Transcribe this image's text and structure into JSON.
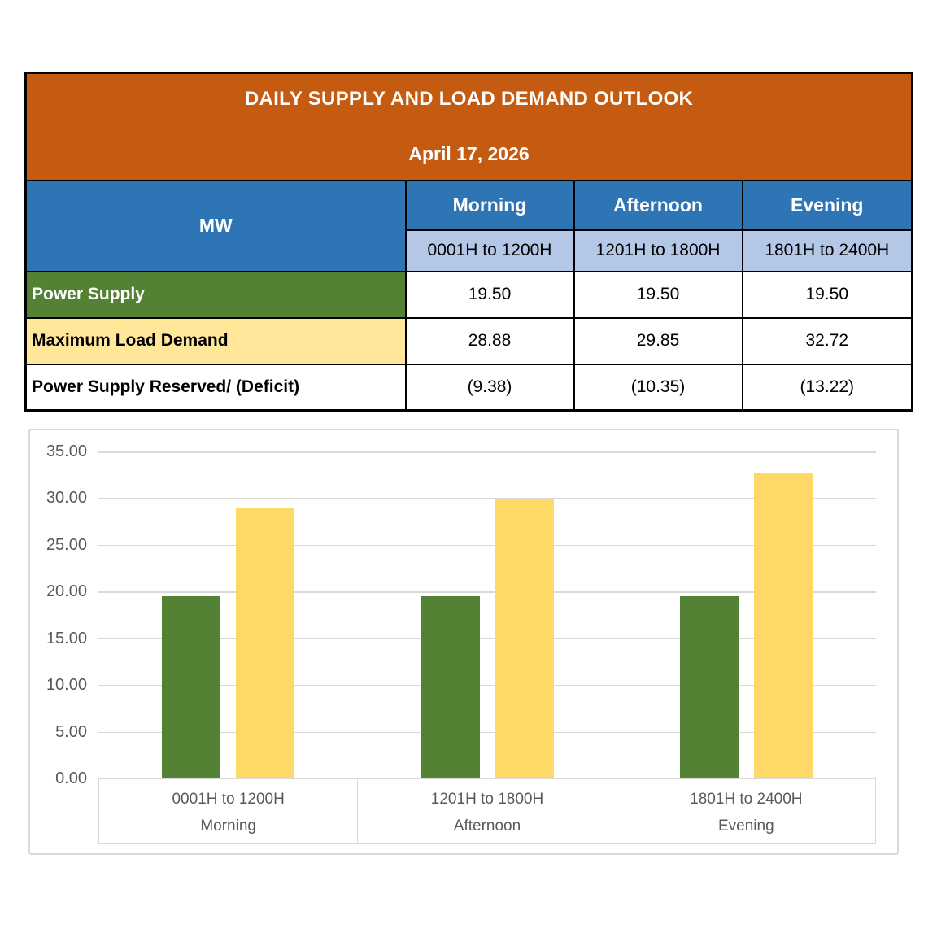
{
  "header": {
    "title": "DAILY SUPPLY AND LOAD DEMAND OUTLOOK",
    "date": "April 17, 2026"
  },
  "table": {
    "unit_label": "MW",
    "periods": [
      {
        "name": "Morning",
        "hours": "0001H to 1200H"
      },
      {
        "name": "Afternoon",
        "hours": "1201H to 1800H"
      },
      {
        "name": "Evening",
        "hours": "1801H to 2400H"
      }
    ],
    "rows": [
      {
        "label": "Power Supply",
        "values": [
          "19.50",
          "19.50",
          "19.50"
        ]
      },
      {
        "label": "Maximum Load Demand",
        "values": [
          "28.88",
          "29.85",
          "32.72"
        ]
      },
      {
        "label": "Power Supply Reserved/ (Deficit)",
        "values": [
          "(9.38)",
          "(10.35)",
          "(13.22)"
        ]
      }
    ]
  },
  "chart_data": {
    "type": "bar",
    "categories": [
      "0001H to 1200H",
      "1201H to 1800H",
      "1801H to 2400H"
    ],
    "category_groups": [
      "Morning",
      "Afternoon",
      "Evening"
    ],
    "series": [
      {
        "name": "Power Supply",
        "color": "#548235",
        "values": [
          19.5,
          19.5,
          19.5
        ]
      },
      {
        "name": "Maximum Load Demand",
        "color": "#FFD966",
        "values": [
          28.88,
          29.85,
          32.72
        ]
      }
    ],
    "title": "",
    "xlabel": "",
    "ylabel": "",
    "ylim": [
      0,
      35
    ],
    "ytick_step": 5,
    "ytick_format": "two-decimal",
    "grid": true,
    "legend": "none"
  },
  "colors": {
    "header_orange": "#C55A11",
    "header_blue": "#2E75B6",
    "header_light_blue": "#B4C7E7",
    "row_green": "#548235",
    "row_yellow": "#FFE699",
    "bar_green": "#548235",
    "bar_yellow": "#FFD966",
    "axis_text": "#595959",
    "gridline": "#D9D9D9",
    "table_border": "#000000"
  }
}
